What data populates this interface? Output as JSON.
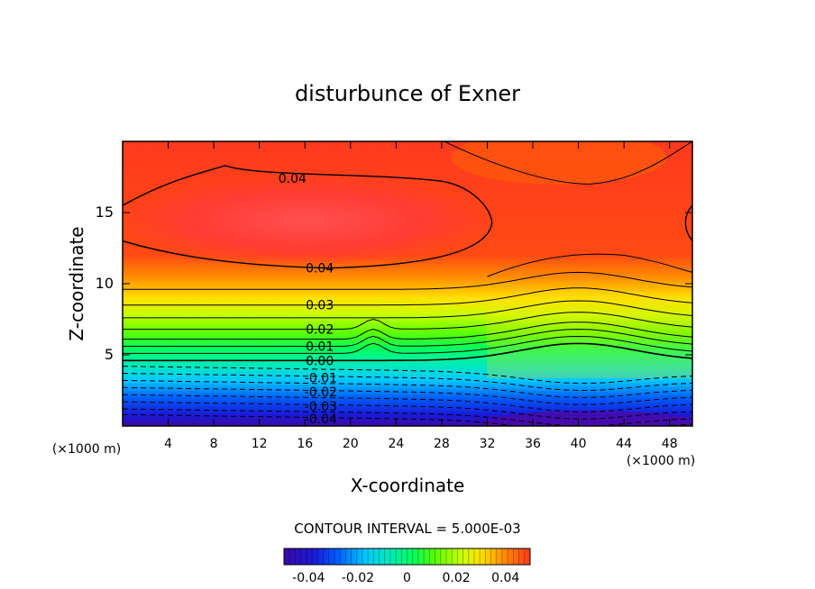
{
  "chart_data": {
    "type": "contour",
    "title": "disturbunce of Exner",
    "xlabel": "X-coordinate",
    "ylabel": "Z-coordinate",
    "x_unit_label": "(×1000 m)",
    "x_unit_label_left": "(×1000 m)",
    "xlim": [
      0,
      50
    ],
    "ylim": [
      0,
      20
    ],
    "x_ticks": [
      4,
      8,
      12,
      16,
      20,
      24,
      28,
      32,
      36,
      40,
      44,
      48
    ],
    "y_ticks": [
      5,
      10,
      15
    ],
    "contour_interval_text": "CONTOUR INTERVAL =  5.000E-03",
    "contour_labels": [
      {
        "text": "0.04",
        "x": 14.9,
        "y": 17.4
      },
      {
        "text": "0.04",
        "x": 17.3,
        "y": 11.1
      },
      {
        "text": "0.03",
        "x": 17.3,
        "y": 8.5
      },
      {
        "text": "0.02",
        "x": 17.3,
        "y": 6.8
      },
      {
        "text": "0.01",
        "x": 17.3,
        "y": 5.6
      },
      {
        "text": "0.00",
        "x": 17.3,
        "y": 4.6
      },
      {
        "text": "-0.01",
        "x": 17.4,
        "y": 3.4
      },
      {
        "text": "-0.02",
        "x": 17.4,
        "y": 2.4
      },
      {
        "text": "-0.03",
        "x": 17.4,
        "y": 1.4
      },
      {
        "text": "-0.04",
        "x": 17.4,
        "y": 0.5
      }
    ],
    "colorbar": {
      "range": [
        -0.05,
        0.05
      ],
      "ticks": [
        -0.04,
        -0.02,
        0,
        0.02,
        0.04
      ],
      "tick_labels": [
        "-0.04",
        "-0.02",
        "0",
        "0.02",
        "0.04"
      ]
    },
    "colormap": [
      "#5a0a8c",
      "#1a1ad8",
      "#0060ff",
      "#00c8ff",
      "#00e8c0",
      "#00ff60",
      "#60ff00",
      "#c8ff00",
      "#ffe000",
      "#ff8800",
      "#ff3a1e"
    ]
  }
}
